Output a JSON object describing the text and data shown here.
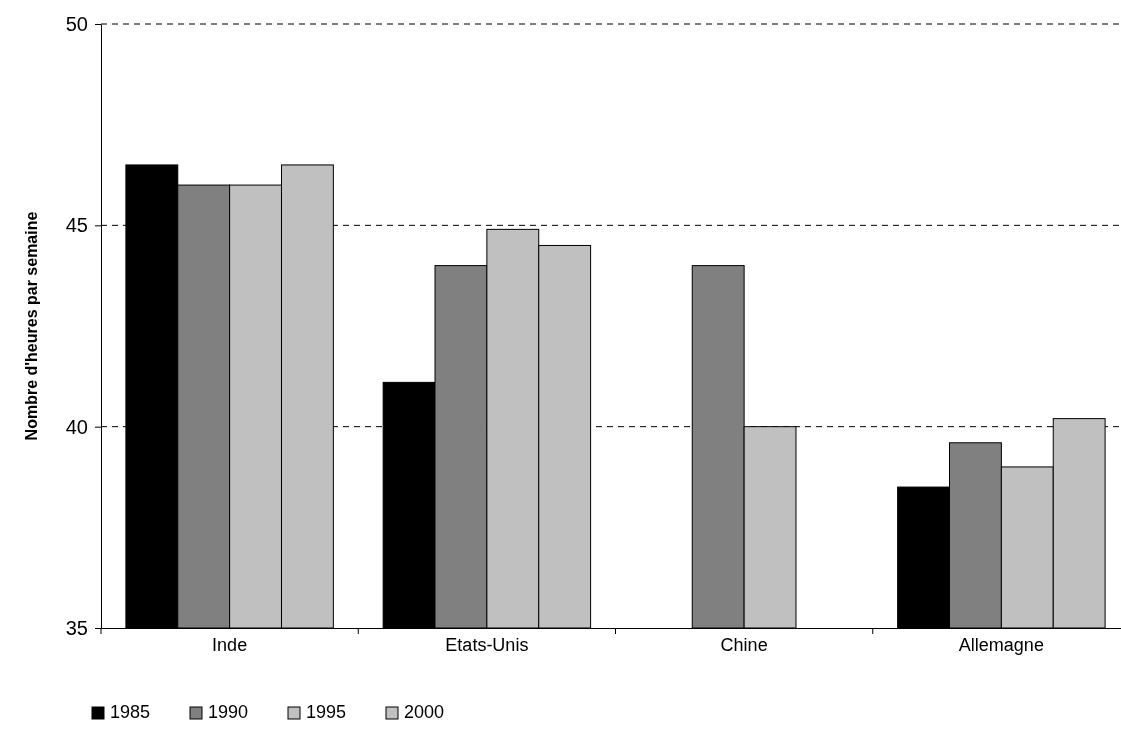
{
  "chart_data": {
    "type": "bar",
    "ylabel": "Nombre d'heures par semaine",
    "categories": [
      "Inde",
      "Etats-Unis",
      "Chine",
      "Allemagne"
    ],
    "series": [
      {
        "name": "1985",
        "color": "#000000",
        "values": [
          46.5,
          41.1,
          null,
          38.5
        ]
      },
      {
        "name": "1990",
        "color": "#808080",
        "values": [
          46,
          44,
          44,
          39.6
        ]
      },
      {
        "name": "1995",
        "color": "#c0c0c0",
        "values": [
          46,
          44.9,
          40,
          39
        ]
      },
      {
        "name": "2000",
        "color": "#c0c0c0",
        "values": [
          46.5,
          44.5,
          null,
          40.2
        ]
      }
    ],
    "ylim": [
      35,
      50
    ],
    "yticks": [
      35,
      40,
      45,
      50
    ],
    "grid": "y",
    "legend": "bottom left"
  }
}
